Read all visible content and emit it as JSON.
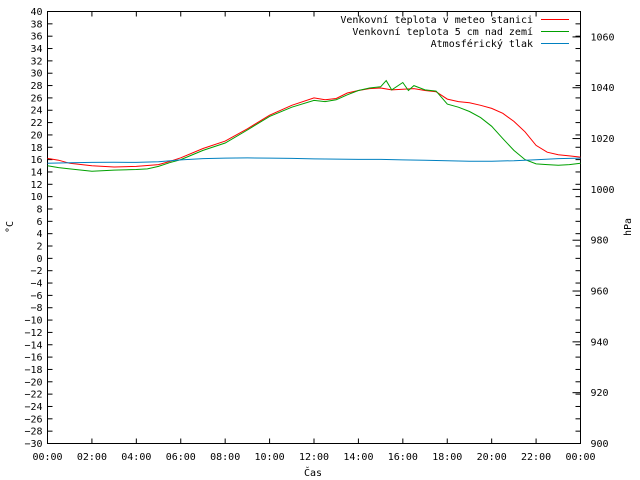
{
  "chart_data": {
    "type": "line",
    "xlabel": "Čas",
    "ylabel": "°C",
    "y2label": "hPa",
    "x_ticks": [
      "00:00",
      "02:00",
      "04:00",
      "06:00",
      "08:00",
      "10:00",
      "12:00",
      "14:00",
      "16:00",
      "18:00",
      "20:00",
      "22:00",
      "00:00"
    ],
    "x_range_hours": [
      0,
      24
    ],
    "ylim": [
      -30,
      40
    ],
    "y_tick_step": 2,
    "y2lim": [
      900,
      1070
    ],
    "y2_ticks": [
      900,
      920,
      940,
      960,
      980,
      1000,
      1020,
      1040,
      1060
    ],
    "grid": false,
    "legend_position": "top-right",
    "series": [
      {
        "name": "Venkovní teplota v meteo stanici",
        "color": "#ff0000",
        "axis": "left",
        "x": [
          0,
          0.5,
          1,
          2,
          3,
          4,
          5,
          5.5,
          6,
          7,
          8,
          9,
          10,
          11,
          12,
          12.5,
          13,
          13.5,
          14,
          14.5,
          15,
          15.5,
          16,
          16.5,
          17,
          17.5,
          18,
          18.5,
          19,
          19.5,
          20,
          20.5,
          21,
          21.5,
          22,
          22.5,
          23,
          23.5,
          24
        ],
        "values": [
          16.2,
          15.9,
          15.4,
          15.0,
          14.8,
          14.9,
          15.2,
          15.7,
          16.3,
          17.8,
          19.0,
          21.0,
          23.2,
          24.8,
          26.0,
          25.7,
          25.9,
          26.8,
          27.2,
          27.5,
          27.6,
          27.3,
          27.4,
          27.5,
          27.2,
          27.0,
          25.8,
          25.4,
          25.2,
          24.8,
          24.3,
          23.5,
          22.2,
          20.5,
          18.3,
          17.2,
          16.8,
          16.6,
          16.4
        ]
      },
      {
        "name": "Venkovní teplota 5 cm nad zemí",
        "color": "#00a000",
        "axis": "left",
        "x": [
          0,
          0.5,
          1,
          2,
          3,
          4,
          4.5,
          5,
          5.5,
          6,
          7,
          8,
          9,
          10,
          11,
          12,
          12.5,
          13,
          13.5,
          14,
          14.5,
          15,
          15.25,
          15.5,
          16,
          16.25,
          16.5,
          17,
          17.5,
          18,
          18.5,
          19,
          19.5,
          20,
          20.5,
          21,
          21.5,
          22,
          22.5,
          23,
          23.5,
          24
        ],
        "values": [
          15.0,
          14.7,
          14.5,
          14.1,
          14.3,
          14.4,
          14.5,
          14.9,
          15.5,
          16.0,
          17.5,
          18.7,
          20.8,
          23.0,
          24.5,
          25.6,
          25.4,
          25.7,
          26.5,
          27.2,
          27.6,
          27.8,
          28.8,
          27.3,
          28.5,
          27.2,
          28.0,
          27.3,
          27.1,
          25.0,
          24.5,
          23.8,
          22.8,
          21.4,
          19.4,
          17.5,
          16.0,
          15.3,
          15.2,
          15.1,
          15.2,
          15.4
        ]
      },
      {
        "name": "Atmosférický tlak",
        "color": "#0080c0",
        "axis": "right",
        "x": [
          0,
          1,
          2,
          3,
          4,
          5,
          6,
          7,
          8,
          9,
          10,
          11,
          12,
          13,
          14,
          15,
          16,
          17,
          18,
          19,
          20,
          21,
          22,
          23,
          24
        ],
        "values": [
          1010.3,
          1010.5,
          1010.6,
          1010.7,
          1010.6,
          1010.9,
          1011.6,
          1012.1,
          1012.3,
          1012.4,
          1012.3,
          1012.2,
          1012.0,
          1011.9,
          1011.8,
          1011.8,
          1011.6,
          1011.5,
          1011.3,
          1011.1,
          1011.1,
          1011.3,
          1011.7,
          1012.1,
          1012.3
        ]
      }
    ]
  }
}
